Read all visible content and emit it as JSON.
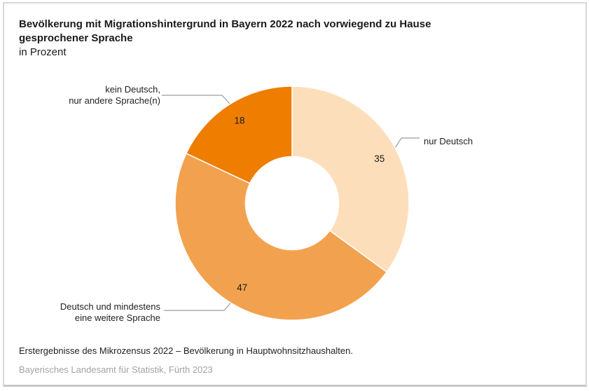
{
  "header": {
    "title": "Bevölkerung mit Migrationshintergrund in Bayern 2022 nach vorwiegend zu Hause\ngesprochener Sprache",
    "subtitle": "in Prozent"
  },
  "chart_data": {
    "type": "pie",
    "variant": "donut",
    "title": "Bevölkerung mit Migrationshintergrund in Bayern 2022 nach vorwiegend zu Hause gesprochener Sprache",
    "unit_label": "in Prozent",
    "start_angle_deg": 0,
    "direction": "clockwise",
    "legend_position": "callout-labels",
    "slices": [
      {
        "label": "nur Deutsch",
        "value": 35,
        "color": "#FCDFBA"
      },
      {
        "label": "Deutsch und mindestens eine weitere Sprache",
        "value": 47,
        "color": "#F2A24E"
      },
      {
        "label": "kein Deutsch, nur andere Sprache(n)",
        "value": 18,
        "color": "#EE7D00"
      }
    ]
  },
  "callouts": {
    "nur_deutsch": "nur Deutsch",
    "deutsch_und_weitere": "Deutsch und mindestens\neine weitere Sprache",
    "kein_deutsch": "kein Deutsch,\nnur andere Sprache(n)"
  },
  "footer": {
    "source": "Erstergebnisse des Mikrozensus 2022 – Bevölkerung in Hauptwohnsitzhaushalten.",
    "publisher": "Bayerisches Landesamt für Statistik, Fürth 2023"
  }
}
